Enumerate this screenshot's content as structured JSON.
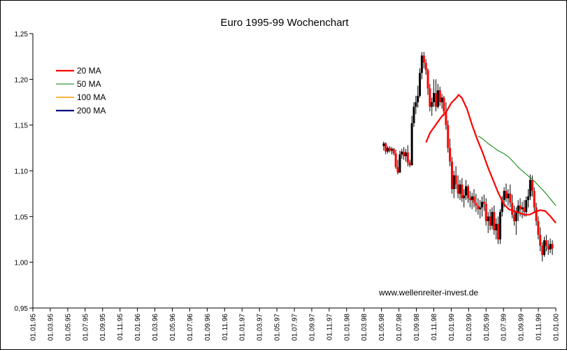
{
  "chart_data": {
    "type": "line",
    "title": "Euro 1995-99 Wochenchart",
    "watermark": "www.wellenreiter-invest.de",
    "y_ticks": [
      "0,95",
      "1,00",
      "1,05",
      "1,10",
      "1,15",
      "1,20",
      "1,25"
    ],
    "ylim": [
      0.95,
      1.25
    ],
    "x_tick_labels": [
      "01.01.95",
      "01.03.95",
      "01.05.95",
      "01.07.95",
      "01.09.95",
      "01.11.95",
      "01.01.96",
      "01.03.96",
      "01.05.96",
      "01.07.96",
      "01.09.96",
      "01.11.96",
      "01.01.97",
      "01.03.97",
      "01.05.97",
      "01.07.97",
      "01.09.97",
      "01.11.97",
      "01.01.98",
      "01.03.98",
      "01.05.98",
      "01.07.98",
      "01.09.98",
      "01.11.98",
      "01.01.99",
      "01.03.99",
      "01.05.99",
      "01.07.99",
      "01.09.99",
      "01.11.99",
      "01.01.00"
    ],
    "xlim": [
      1995.0,
      2000.0
    ],
    "grid": false,
    "legend_position": "left",
    "legend": [
      {
        "name": "20 MA",
        "color": "#ff0000",
        "width": 2.2
      },
      {
        "name": "50 MA",
        "color": "#008000",
        "width": 1.0
      },
      {
        "name": "100 MA",
        "color": "#ff9900",
        "width": 1.5
      },
      {
        "name": "200 MA",
        "color": "#000080",
        "width": 2.2
      }
    ],
    "series": [
      {
        "name": "20 MA",
        "color": "#ff0000",
        "points": [
          [
            1998.759,
            1.131
          ],
          [
            1998.8,
            1.142
          ],
          [
            1998.85,
            1.15
          ],
          [
            1998.9,
            1.158
          ],
          [
            1998.96,
            1.166
          ],
          [
            1999.0,
            1.174
          ],
          [
            1999.05,
            1.18
          ],
          [
            1999.07,
            1.183
          ],
          [
            1999.1,
            1.18
          ],
          [
            1999.15,
            1.168
          ],
          [
            1999.2,
            1.15
          ],
          [
            1999.25,
            1.134
          ],
          [
            1999.3,
            1.12
          ],
          [
            1999.35,
            1.104
          ],
          [
            1999.4,
            1.09
          ],
          [
            1999.45,
            1.076
          ],
          [
            1999.5,
            1.064
          ],
          [
            1999.55,
            1.058
          ],
          [
            1999.6,
            1.056
          ],
          [
            1999.65,
            1.054
          ],
          [
            1999.7,
            1.052
          ],
          [
            1999.75,
            1.052
          ],
          [
            1999.8,
            1.055
          ],
          [
            1999.85,
            1.057
          ],
          [
            1999.9,
            1.056
          ],
          [
            1999.95,
            1.05
          ],
          [
            2000.0,
            1.043
          ]
        ]
      },
      {
        "name": "50 MA",
        "color": "#008000",
        "points": [
          [
            1999.26,
            1.138
          ],
          [
            1999.3,
            1.135
          ],
          [
            1999.35,
            1.13
          ],
          [
            1999.4,
            1.126
          ],
          [
            1999.45,
            1.122
          ],
          [
            1999.5,
            1.119
          ],
          [
            1999.55,
            1.115
          ],
          [
            1999.6,
            1.109
          ],
          [
            1999.65,
            1.103
          ],
          [
            1999.7,
            1.098
          ],
          [
            1999.75,
            1.093
          ],
          [
            1999.8,
            1.088
          ],
          [
            1999.85,
            1.082
          ],
          [
            1999.9,
            1.076
          ],
          [
            1999.95,
            1.069
          ],
          [
            2000.0,
            1.062
          ]
        ]
      }
    ],
    "ohlc": [
      [
        1998.355,
        1.127,
        1.132,
        1.122,
        1.13
      ],
      [
        1998.374,
        1.13,
        1.131,
        1.118,
        1.121
      ],
      [
        1998.393,
        1.121,
        1.127,
        1.119,
        1.125
      ],
      [
        1998.413,
        1.125,
        1.127,
        1.12,
        1.122
      ],
      [
        1998.432,
        1.122,
        1.126,
        1.118,
        1.124
      ],
      [
        1998.451,
        1.124,
        1.125,
        1.117,
        1.119
      ],
      [
        1998.47,
        1.119,
        1.123,
        1.102,
        1.104
      ],
      [
        1998.489,
        1.104,
        1.112,
        1.096,
        1.098
      ],
      [
        1998.509,
        1.098,
        1.122,
        1.098,
        1.118
      ],
      [
        1998.528,
        1.118,
        1.124,
        1.113,
        1.121
      ],
      [
        1998.547,
        1.121,
        1.126,
        1.112,
        1.116
      ],
      [
        1998.566,
        1.116,
        1.124,
        1.11,
        1.12
      ],
      [
        1998.585,
        1.12,
        1.128,
        1.105,
        1.109
      ],
      [
        1998.604,
        1.109,
        1.112,
        1.104,
        1.106
      ],
      [
        1998.624,
        1.106,
        1.16,
        1.106,
        1.152
      ],
      [
        1998.643,
        1.152,
        1.175,
        1.148,
        1.17
      ],
      [
        1998.662,
        1.17,
        1.182,
        1.162,
        1.175
      ],
      [
        1998.681,
        1.175,
        1.193,
        1.169,
        1.182
      ],
      [
        1998.7,
        1.182,
        1.212,
        1.18,
        1.207
      ],
      [
        1998.719,
        1.207,
        1.23,
        1.2,
        1.226
      ],
      [
        1998.739,
        1.226,
        1.23,
        1.212,
        1.218
      ],
      [
        1998.758,
        1.218,
        1.222,
        1.205,
        1.21
      ],
      [
        1998.777,
        1.21,
        1.212,
        1.183,
        1.19
      ],
      [
        1998.796,
        1.19,
        1.195,
        1.165,
        1.17
      ],
      [
        1998.815,
        1.17,
        1.18,
        1.16,
        1.175
      ],
      [
        1998.834,
        1.175,
        1.2,
        1.17,
        1.185
      ],
      [
        1998.854,
        1.185,
        1.2,
        1.165,
        1.17
      ],
      [
        1998.873,
        1.17,
        1.195,
        1.168,
        1.188
      ],
      [
        1998.892,
        1.188,
        1.192,
        1.171,
        1.175
      ],
      [
        1998.911,
        1.175,
        1.184,
        1.168,
        1.18
      ],
      [
        1998.93,
        1.18,
        1.182,
        1.16,
        1.165
      ],
      [
        1998.95,
        1.165,
        1.175,
        1.145,
        1.15
      ],
      [
        1998.969,
        1.15,
        1.155,
        1.12,
        1.125
      ],
      [
        1998.988,
        1.125,
        1.135,
        1.105,
        1.11
      ],
      [
        1999.007,
        1.11,
        1.115,
        1.075,
        1.08
      ],
      [
        1999.026,
        1.08,
        1.1,
        1.07,
        1.095
      ],
      [
        1999.045,
        1.095,
        1.105,
        1.08,
        1.085
      ],
      [
        1999.065,
        1.085,
        1.095,
        1.07,
        1.075
      ],
      [
        1999.084,
        1.075,
        1.09,
        1.068,
        1.085
      ],
      [
        1999.103,
        1.085,
        1.092,
        1.066,
        1.07
      ],
      [
        1999.122,
        1.07,
        1.08,
        1.06,
        1.073
      ],
      [
        1999.141,
        1.073,
        1.09,
        1.068,
        1.083
      ],
      [
        1999.161,
        1.083,
        1.085,
        1.065,
        1.07
      ],
      [
        1999.18,
        1.07,
        1.078,
        1.06,
        1.068
      ],
      [
        1999.199,
        1.068,
        1.076,
        1.058,
        1.072
      ],
      [
        1999.218,
        1.072,
        1.08,
        1.06,
        1.065
      ],
      [
        1999.237,
        1.065,
        1.075,
        1.055,
        1.062
      ],
      [
        1999.257,
        1.062,
        1.07,
        1.052,
        1.058
      ],
      [
        1999.276,
        1.058,
        1.068,
        1.048,
        1.06
      ],
      [
        1999.295,
        1.06,
        1.072,
        1.05,
        1.066
      ],
      [
        1999.314,
        1.066,
        1.074,
        1.056,
        1.064
      ],
      [
        1999.333,
        1.064,
        1.07,
        1.04,
        1.045
      ],
      [
        1999.353,
        1.045,
        1.055,
        1.032,
        1.05
      ],
      [
        1999.372,
        1.05,
        1.058,
        1.035,
        1.04
      ],
      [
        1999.391,
        1.04,
        1.06,
        1.036,
        1.055
      ],
      [
        1999.41,
        1.055,
        1.062,
        1.03,
        1.035
      ],
      [
        1999.429,
        1.035,
        1.048,
        1.025,
        1.042
      ],
      [
        1999.448,
        1.042,
        1.05,
        1.02,
        1.025
      ],
      [
        1999.468,
        1.025,
        1.058,
        1.02,
        1.055
      ],
      [
        1999.487,
        1.055,
        1.072,
        1.05,
        1.068
      ],
      [
        1999.506,
        1.068,
        1.082,
        1.06,
        1.078
      ],
      [
        1999.525,
        1.078,
        1.086,
        1.066,
        1.07
      ],
      [
        1999.544,
        1.07,
        1.08,
        1.062,
        1.075
      ],
      [
        1999.564,
        1.075,
        1.085,
        1.06,
        1.065
      ],
      [
        1999.583,
        1.065,
        1.074,
        1.048,
        1.052
      ],
      [
        1999.602,
        1.052,
        1.062,
        1.04,
        1.045
      ],
      [
        1999.621,
        1.045,
        1.06,
        1.03,
        1.055
      ],
      [
        1999.64,
        1.055,
        1.068,
        1.045,
        1.062
      ],
      [
        1999.659,
        1.062,
        1.07,
        1.05,
        1.058
      ],
      [
        1999.679,
        1.058,
        1.066,
        1.048,
        1.06
      ],
      [
        1999.698,
        1.06,
        1.068,
        1.05,
        1.055
      ],
      [
        1999.717,
        1.055,
        1.072,
        1.05,
        1.068
      ],
      [
        1999.736,
        1.068,
        1.08,
        1.06,
        1.072
      ],
      [
        1999.755,
        1.072,
        1.096,
        1.068,
        1.09
      ],
      [
        1999.775,
        1.09,
        1.095,
        1.072,
        1.078
      ],
      [
        1999.794,
        1.078,
        1.082,
        1.055,
        1.06
      ],
      [
        1999.813,
        1.06,
        1.065,
        1.04,
        1.045
      ],
      [
        1999.832,
        1.045,
        1.05,
        1.025,
        1.03
      ],
      [
        1999.851,
        1.03,
        1.038,
        1.012,
        1.018
      ],
      [
        1999.871,
        1.018,
        1.022,
        1.001,
        1.008
      ],
      [
        1999.89,
        1.008,
        1.028,
        1.006,
        1.024
      ],
      [
        1999.909,
        1.024,
        1.03,
        1.012,
        1.018
      ],
      [
        1999.928,
        1.018,
        1.024,
        1.008,
        1.014
      ],
      [
        1999.947,
        1.014,
        1.026,
        1.01,
        1.02
      ],
      [
        1999.967,
        1.02,
        1.024,
        1.008,
        1.015
      ]
    ]
  }
}
